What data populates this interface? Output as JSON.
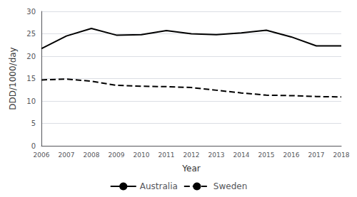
{
  "chart_data": {
    "type": "line",
    "x_label": "Year",
    "y_label": "DDD/1000/day",
    "x": [
      2006,
      2007,
      2008,
      2009,
      2010,
      2011,
      2012,
      2013,
      2014,
      2015,
      2016,
      2017,
      2018
    ],
    "series": [
      {
        "name": "Australia",
        "color": "#000000",
        "line_style": "solid",
        "values": [
          21.7,
          24.5,
          26.2,
          24.7,
          24.8,
          25.7,
          25.0,
          24.8,
          25.2,
          25.8,
          24.3,
          22.3,
          22.3
        ]
      },
      {
        "name": "Sweden",
        "color": "#000000",
        "line_style": "dashed",
        "values": [
          14.7,
          14.9,
          14.4,
          13.5,
          13.3,
          13.2,
          13.0,
          12.4,
          11.8,
          11.3,
          11.2,
          11.0,
          10.9
        ]
      }
    ],
    "xlim": [
      2006,
      2018
    ],
    "xticks": [
      2006,
      2007,
      2008,
      2009,
      2010,
      2011,
      2012,
      2013,
      2014,
      2015,
      2016,
      2017,
      2018
    ],
    "ylim": [
      0,
      30
    ],
    "yticks": [
      0,
      5,
      10,
      15,
      20,
      25,
      30
    ],
    "grid": true,
    "legend": "bottom"
  }
}
